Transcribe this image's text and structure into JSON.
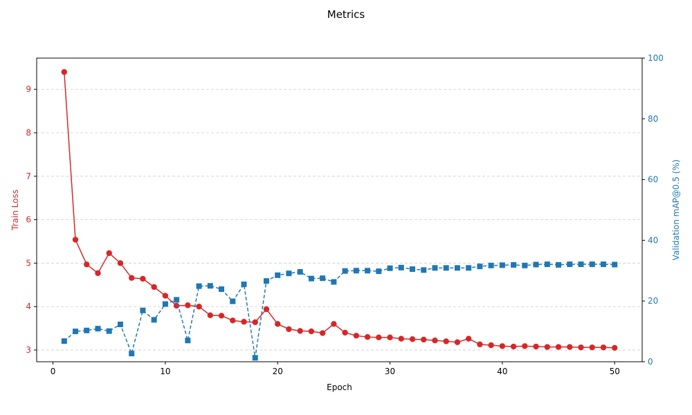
{
  "chart_data": {
    "type": "line",
    "title": "Metrics",
    "xlabel": "Epoch",
    "ylabel_left": "Train Loss",
    "ylabel_right": "Validation mAP@0.5 (%)",
    "xlim": [
      -1.45,
      52.45
    ],
    "ylim_left": [
      2.73,
      9.72
    ],
    "ylim_right": [
      0,
      100
    ],
    "x_ticks": [
      0,
      10,
      20,
      30,
      40,
      50
    ],
    "y_ticks_left": [
      3,
      4,
      5,
      6,
      7,
      8,
      9
    ],
    "y_ticks_right": [
      0,
      20,
      40,
      60,
      80,
      100
    ],
    "grid": "horizontal dashed",
    "colors": {
      "loss": "#d62728",
      "map": "#1f77b4",
      "grid": "#cccccc",
      "text": "#000000"
    },
    "x": [
      1,
      2,
      3,
      4,
      5,
      6,
      7,
      8,
      9,
      10,
      11,
      12,
      13,
      14,
      15,
      16,
      17,
      18,
      19,
      20,
      21,
      22,
      23,
      24,
      25,
      26,
      27,
      28,
      29,
      30,
      31,
      32,
      33,
      34,
      35,
      36,
      37,
      38,
      39,
      40,
      41,
      42,
      43,
      44,
      45,
      46,
      47,
      48,
      49,
      50
    ],
    "series": [
      {
        "axis": "left",
        "style": "solid",
        "marker": "circle",
        "values": [
          9.4,
          5.54,
          4.97,
          4.77,
          5.23,
          5.0,
          4.66,
          4.64,
          4.45,
          4.25,
          4.02,
          4.03,
          4.0,
          3.8,
          3.79,
          3.68,
          3.65,
          3.64,
          3.94,
          3.6,
          3.48,
          3.44,
          3.43,
          3.39,
          3.6,
          3.4,
          3.33,
          3.3,
          3.29,
          3.29,
          3.26,
          3.25,
          3.24,
          3.22,
          3.2,
          3.18,
          3.26,
          3.13,
          3.11,
          3.09,
          3.08,
          3.09,
          3.08,
          3.07,
          3.07,
          3.07,
          3.06,
          3.06,
          3.06,
          3.05
        ]
      },
      {
        "axis": "right",
        "style": "dashed",
        "marker": "square",
        "values": [
          6.8,
          10.0,
          10.3,
          10.9,
          10.1,
          12.3,
          2.7,
          16.9,
          13.8,
          19.0,
          20.4,
          7.0,
          24.9,
          25.0,
          23.9,
          19.9,
          25.5,
          1.3,
          26.6,
          28.5,
          29.1,
          29.6,
          27.4,
          27.5,
          26.3,
          29.9,
          30.0,
          30.0,
          29.8,
          30.8,
          31.0,
          30.5,
          30.2,
          30.9,
          30.9,
          30.9,
          30.9,
          31.4,
          31.7,
          31.8,
          31.9,
          31.7,
          32.0,
          32.1,
          31.9,
          32.1,
          32.1,
          32.1,
          32.1,
          32.0
        ]
      }
    ]
  }
}
